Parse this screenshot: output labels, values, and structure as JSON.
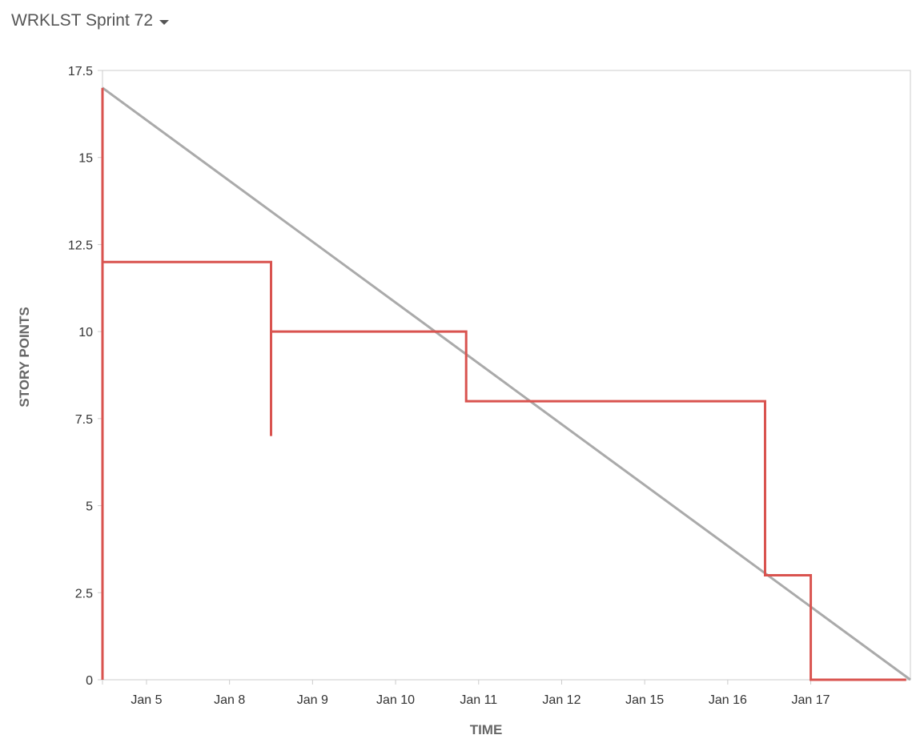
{
  "header": {
    "sprint_name": "WRKLST Sprint 72"
  },
  "chart_data": {
    "type": "line",
    "xlabel": "TIME",
    "ylabel": "STORY POINTS",
    "ylim": [
      0,
      17.5
    ],
    "yticks": [
      0,
      2.5,
      5,
      7.5,
      10,
      12.5,
      15,
      17.5
    ],
    "ytick_labels": [
      "0",
      "2.5",
      "5",
      "7.5",
      "10",
      "12.5",
      "15",
      "17.5"
    ],
    "x_categories": [
      "Jan 5",
      "Jan 8",
      "Jan 9",
      "Jan 10",
      "Jan 11",
      "Jan 12",
      "Jan 15",
      "Jan 16",
      "Jan 17"
    ],
    "x_range": [
      -0.53,
      9.2
    ],
    "grid": false,
    "series": [
      {
        "color": "#aaaaaa",
        "points": [
          [
            -0.53,
            17
          ],
          [
            9.2,
            0
          ]
        ]
      },
      {
        "color": "#d9534f",
        "step": true,
        "points": [
          [
            -0.53,
            0
          ],
          [
            -0.53,
            17
          ],
          [
            -0.53,
            12
          ],
          [
            1.5,
            12
          ],
          [
            1.5,
            7
          ],
          [
            1.5,
            10
          ],
          [
            3.85,
            10
          ],
          [
            3.85,
            8
          ],
          [
            7.45,
            8
          ],
          [
            7.45,
            3
          ],
          [
            8.0,
            3
          ],
          [
            8.0,
            0
          ],
          [
            9.15,
            0
          ]
        ]
      }
    ]
  }
}
